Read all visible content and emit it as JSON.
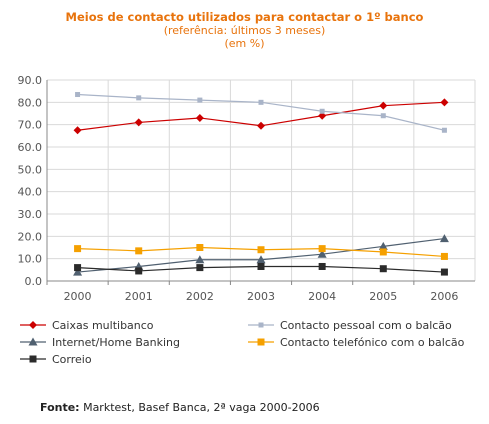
{
  "chart_data": {
    "type": "line",
    "title": "Meios de contacto utilizados para contactar o 1º banco",
    "subtitle": "(referência: últimos 3 meses)",
    "unit_note": "(em %)",
    "categories": [
      "2000",
      "2001",
      "2002",
      "2003",
      "2004",
      "2005",
      "2006"
    ],
    "ylim": [
      0,
      90
    ],
    "yticks": [
      "0.0",
      "10.0",
      "20.0",
      "30.0",
      "40.0",
      "50.0",
      "60.0",
      "70.0",
      "80.0",
      "90.0"
    ],
    "grid": true,
    "legend_position": "bottom",
    "series": [
      {
        "name": "Caixas multibanco",
        "color": "#cc0000",
        "marker": "diamond",
        "values": [
          67.5,
          71.0,
          73.0,
          69.5,
          74.0,
          78.5,
          80.0
        ]
      },
      {
        "name": "Contacto pessoal com o balcão",
        "color": "#a9b4c8",
        "marker": "square-small",
        "values": [
          83.5,
          82.0,
          81.0,
          80.0,
          76.0,
          74.0,
          67.5
        ]
      },
      {
        "name": "Internet/Home Banking",
        "color": "#506070",
        "marker": "triangle",
        "values": [
          4.0,
          6.5,
          9.5,
          9.5,
          12.0,
          15.5,
          19.0
        ]
      },
      {
        "name": "Contacto telefónico com o balcão",
        "color": "#f5a000",
        "marker": "square",
        "values": [
          14.5,
          13.5,
          15.0,
          14.0,
          14.5,
          13.0,
          11.0
        ]
      },
      {
        "name": "Correio",
        "color": "#2b2b2b",
        "marker": "square",
        "values": [
          6.0,
          4.5,
          6.0,
          6.5,
          6.5,
          5.5,
          4.0
        ]
      }
    ]
  },
  "footer": {
    "source_label": "Fonte:",
    "source_text": " Marktest, Basef Banca, 2ª vaga 2000-2006"
  }
}
